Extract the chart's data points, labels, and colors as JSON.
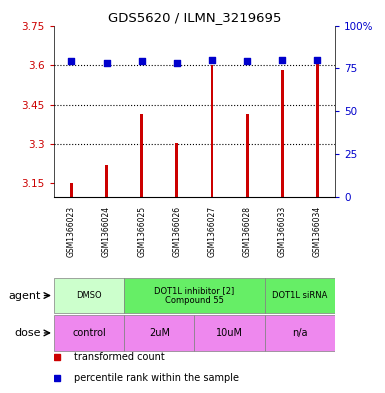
{
  "title": "GDS5620 / ILMN_3219695",
  "samples": [
    "GSM1366023",
    "GSM1366024",
    "GSM1366025",
    "GSM1366026",
    "GSM1366027",
    "GSM1366028",
    "GSM1366033",
    "GSM1366034"
  ],
  "bar_values": [
    3.152,
    3.22,
    3.415,
    3.305,
    3.6,
    3.415,
    3.582,
    3.607
  ],
  "dot_values": [
    79,
    78,
    79,
    78,
    80,
    79,
    80,
    80
  ],
  "ylim_left": [
    3.1,
    3.75
  ],
  "ylim_right": [
    0,
    100
  ],
  "yticks_left": [
    3.15,
    3.3,
    3.45,
    3.6,
    3.75
  ],
  "ytick_labels_left": [
    "3.15",
    "3.3",
    "3.45",
    "3.6",
    "3.75"
  ],
  "yticks_right": [
    0,
    25,
    50,
    75,
    100
  ],
  "ytick_labels_right": [
    "0",
    "25",
    "50",
    "75",
    "100%"
  ],
  "hlines": [
    3.3,
    3.45,
    3.6
  ],
  "bar_color": "#cc0000",
  "dot_color": "#0000cc",
  "bar_width": 0.08,
  "agents": [
    {
      "label": "DMSO",
      "start": 0,
      "end": 2,
      "color": "#ccffcc"
    },
    {
      "label": "DOT1L inhibitor [2]\nCompound 55",
      "start": 2,
      "end": 6,
      "color": "#66ee66"
    },
    {
      "label": "DOT1L siRNA",
      "start": 6,
      "end": 8,
      "color": "#66ee66"
    }
  ],
  "doses": [
    {
      "label": "control",
      "start": 0,
      "end": 2,
      "color": "#ee88ee"
    },
    {
      "label": "2uM",
      "start": 2,
      "end": 4,
      "color": "#ee88ee"
    },
    {
      "label": "10uM",
      "start": 4,
      "end": 6,
      "color": "#ee88ee"
    },
    {
      "label": "n/a",
      "start": 6,
      "end": 8,
      "color": "#ee88ee"
    }
  ],
  "legend_items": [
    {
      "label": "transformed count",
      "color": "#cc0000"
    },
    {
      "label": "percentile rank within the sample",
      "color": "#0000cc"
    }
  ],
  "agent_label": "agent",
  "dose_label": "dose",
  "sample_bg": "#cccccc",
  "background_color": "#ffffff",
  "plot_bg_color": "#ffffff",
  "agent_dmso_color": "#ccffcc",
  "agent_dot1l_color": "#55dd55",
  "dose_color": "#dd88dd"
}
